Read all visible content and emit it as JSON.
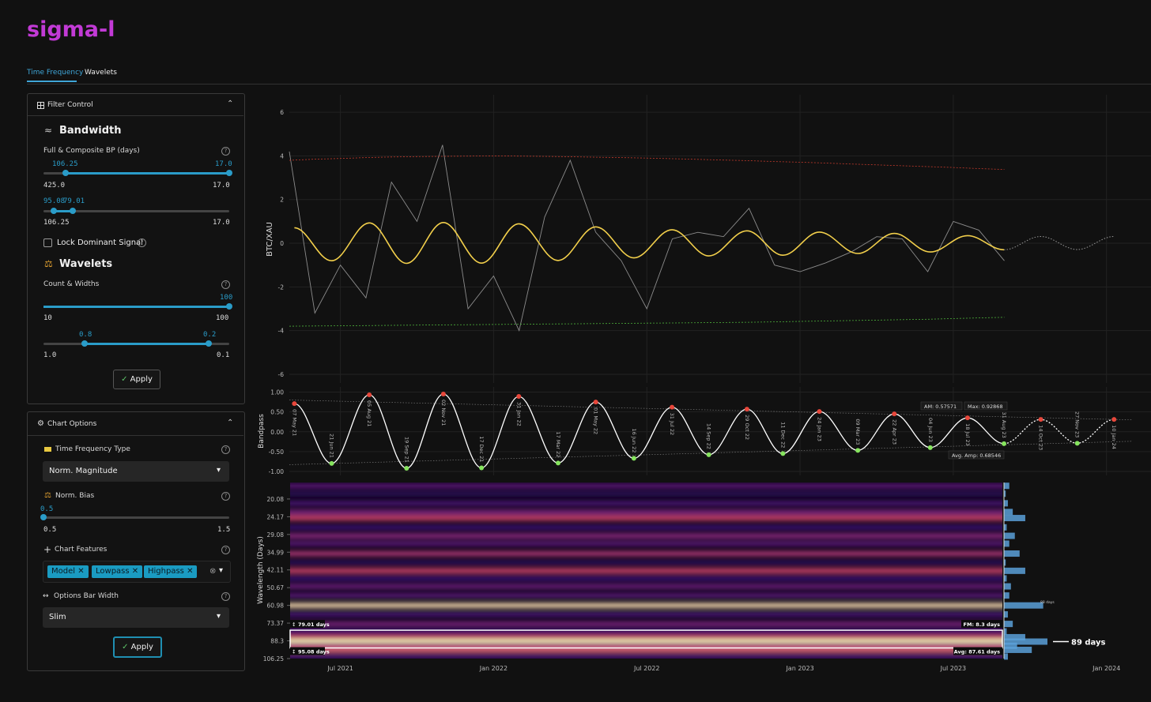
{
  "header": {
    "logo": "sigma-l"
  },
  "tabs": [
    "Time Frequency",
    "Wavelets"
  ],
  "filter_control": {
    "title": "Filter Control",
    "bandwidth": {
      "title": "Bandwidth",
      "label": "Full & Composite BP (days)",
      "range1": {
        "low": "106.25",
        "high": "17.0",
        "min": "425.0",
        "max": "17.0"
      },
      "range2": {
        "low": "95.08",
        "high": "79.01",
        "min": "106.25",
        "max": "17.0"
      }
    },
    "lock": "Lock Dominant Signal",
    "wavelets": {
      "title": "Wavelets",
      "label": "Count & Widths",
      "range1": {
        "value": "100",
        "min": "10",
        "max": "100"
      },
      "range2": {
        "low": "0.8",
        "high": "0.2",
        "min": "1.0",
        "max": "0.1"
      }
    },
    "apply": "Apply"
  },
  "chart_options": {
    "title": "Chart Options",
    "tf_type": {
      "label": "Time Frequency Type",
      "value": "Norm. Magnitude"
    },
    "norm_bias": {
      "label": "Norm. Bias",
      "value": "0.5",
      "min": "0.5",
      "max": "1.5"
    },
    "features": {
      "label": "Chart Features",
      "tags": [
        "Model",
        "Lowpass",
        "Highpass"
      ]
    },
    "bar_width": {
      "label": "Options Bar Width",
      "value": "Slim"
    },
    "apply": "Apply"
  },
  "chart_data": [
    {
      "type": "line",
      "y_label": "BTC/XAU",
      "xlim": [
        "2021-05",
        "2024-02"
      ],
      "xticks": [
        {
          "value": "2021-07",
          "label": "Jul 2021"
        },
        {
          "value": "2022-01",
          "label": "Jan 2022"
        },
        {
          "value": "2022-07",
          "label": "Jul 2022"
        },
        {
          "value": "2023-01",
          "label": "Jan 2023"
        },
        {
          "value": "2023-07",
          "label": "Jul 2023"
        },
        {
          "value": "2024-01",
          "label": "Jan 2024"
        }
      ],
      "ylim": [
        -6.4,
        6.8
      ],
      "yticks": [
        -6,
        -4,
        -2,
        0,
        2,
        4,
        6
      ],
      "grid": true,
      "x": [
        "2021-05",
        "2021-06",
        "2021-07",
        "2021-08",
        "2021-09",
        "2021-10",
        "2021-11",
        "2021-12",
        "2022-01",
        "2022-02",
        "2022-03",
        "2022-04",
        "2022-05",
        "2022-06",
        "2022-07",
        "2022-08",
        "2022-09",
        "2022-10",
        "2022-11",
        "2022-12",
        "2023-01",
        "2023-02",
        "2023-03",
        "2023-04",
        "2023-05",
        "2023-06",
        "2023-07",
        "2023-08",
        "2023-09"
      ],
      "series": [
        {
          "color": "#8c8c8c",
          "values": [
            4.2,
            -3.2,
            -1.0,
            -2.5,
            2.8,
            1.0,
            4.5,
            -3.0,
            -1.5,
            -4.0,
            1.2,
            3.8,
            0.5,
            -0.8,
            -3.0,
            0.2,
            0.5,
            0.3,
            1.6,
            -1.0,
            -1.3,
            -0.9,
            -0.4,
            0.3,
            0.2,
            -1.3,
            1.0,
            0.6,
            -0.8
          ]
        },
        {
          "color": "#c0392b",
          "dash": true,
          "values": [
            3.8,
            3.85,
            3.88,
            3.92,
            3.95,
            3.97,
            3.98,
            3.99,
            4.0,
            3.99,
            3.98,
            3.96,
            3.94,
            3.92,
            3.9,
            3.87,
            3.84,
            3.81,
            3.78,
            3.74,
            3.71,
            3.67,
            3.63,
            3.59,
            3.55,
            3.51,
            3.47,
            3.42,
            3.38
          ]
        },
        {
          "color": "#4caf3a",
          "dash": true,
          "values": [
            -3.8,
            -3.79,
            -3.78,
            -3.77,
            -3.76,
            -3.75,
            -3.74,
            -3.73,
            -3.72,
            -3.71,
            -3.7,
            -3.69,
            -3.68,
            -3.67,
            -3.66,
            -3.65,
            -3.64,
            -3.63,
            -3.62,
            -3.6,
            -3.58,
            -3.56,
            -3.54,
            -3.52,
            -3.5,
            -3.48,
            -3.45,
            -3.42,
            -3.39
          ]
        }
      ],
      "model_color": "#f2cf4b",
      "forecast_color": "#9a9a9a"
    },
    {
      "type": "line",
      "y_label": "Bandpass",
      "ylim": [
        -1.1,
        1.13
      ],
      "yticks": [
        {
          "value": -1,
          "label": "-1.00"
        },
        {
          "value": -0.5,
          "label": "-0.50"
        },
        {
          "value": 0,
          "label": "0.00"
        },
        {
          "value": 0.5,
          "label": "0.50"
        },
        {
          "value": 1,
          "label": "1.00"
        }
      ],
      "x": [
        "07 May 21",
        "21 Jun 21",
        "05 Aug 21",
        "19 Sep 21",
        "02 Nov 21",
        "17 Dec 21",
        "31 Jan 22",
        "17 Mar 22",
        "01 May 22",
        "16 Jun 22",
        "31 Jul 22",
        "14 Sep 22",
        "29 Oct 22",
        "11 Dec 22",
        "24 Jan 23",
        "09 Mar 23",
        "22 Apr 23",
        "04 Jun 23",
        "18 Jul 23",
        "31 Aug 23"
      ],
      "values": [
        0.71,
        -0.8,
        0.93,
        -0.92,
        0.95,
        -0.91,
        0.89,
        -0.79,
        0.75,
        -0.67,
        0.62,
        -0.58,
        0.57,
        -0.55,
        0.51,
        -0.47,
        0.45,
        -0.4,
        0.35,
        -0.3
      ],
      "forecast_x": [
        "14 Oct 23",
        "27 Nov 23",
        "10 Jan 24"
      ],
      "forecast_values": [
        0.31,
        -0.29,
        0.31
      ],
      "color": "#ffffff",
      "peak_color": "#e8473b",
      "trough_color": "#86e45e",
      "envelope": {
        "x": [
          "2021-05",
          "2024-02"
        ],
        "upper": [
          0.8,
          0.3
        ],
        "lower": [
          -0.83,
          -0.24
        ]
      },
      "annotations": {
        "am": "AM: 0.57571",
        "max": "Max: 0.92868",
        "avg": "Avg. Amp: 0.68546"
      }
    },
    {
      "type": "heatmap",
      "y_label": "Wavelength (Days)",
      "log": true,
      "ylim": [
        106.25,
        16.9
      ],
      "yticks": [
        20.08,
        24.17,
        29.08,
        34.99,
        42.11,
        50.67,
        60.98,
        73.37,
        88.3,
        106.25
      ],
      "rows": {
        "wavelengths": [
          17.5,
          19,
          21,
          23,
          24.5,
          27,
          29.5,
          32,
          35.5,
          39,
          42.5,
          46,
          50,
          55,
          61,
          67,
          74,
          80,
          85,
          89,
          93,
          97,
          104
        ],
        "intensity": [
          0.35,
          0.2,
          0.3,
          0.45,
          0.7,
          0.25,
          0.5,
          0.35,
          0.6,
          0.2,
          0.7,
          0.25,
          0.4,
          0.35,
          0.95,
          0.3,
          0.45,
          0.25,
          0.7,
          1.0,
          0.55,
          0.8,
          0.3
        ]
      },
      "colormap": [
        "#000004",
        "#3b0f70",
        "#8c2981",
        "#de4968",
        "#fcfdbf"
      ],
      "band": [
        79.01,
        95.08
      ],
      "annotations": {
        "top": "79.01 days",
        "fm": "FM: 8.3 days",
        "bottom": "95.08 days",
        "avg": "Avg: 87.61 days"
      },
      "histogram": {
        "color": "#5aa0d8",
        "peak_label": "89 days",
        "peak_value": 89,
        "minor_label": "88 days"
      }
    }
  ]
}
